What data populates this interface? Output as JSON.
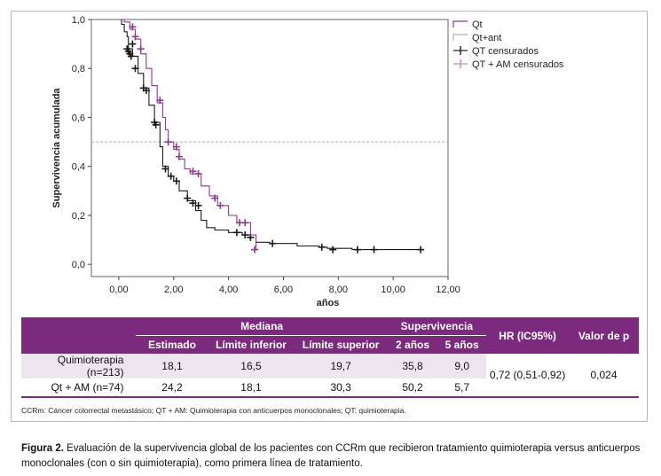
{
  "chart_data": {
    "type": "line",
    "xlabel": "años",
    "ylabel": "Supervivencia acumulada",
    "xlim": [
      -1,
      12
    ],
    "ylim": [
      -0.05,
      1.0
    ],
    "xticks": [
      "0,00",
      "2,00",
      "4,00",
      "6,00",
      "8,00",
      "10,00",
      "12,00"
    ],
    "xtick_values": [
      0,
      2,
      4,
      6,
      8,
      10,
      12
    ],
    "yticks": [
      "0,0",
      "0,2",
      "0,4",
      "0,6",
      "0,8",
      "1,0"
    ],
    "ytick_values": [
      0,
      0.2,
      0.4,
      0.6,
      0.8,
      1.0
    ],
    "reference_line_y": 0.5,
    "legend_position": "top-right",
    "legend": [
      "Qt",
      "Qt+ant",
      "QT censurados",
      "QT + AM censurados"
    ],
    "series": [
      {
        "name": "Qt",
        "color": "#1a1a1a",
        "points": [
          [
            0,
            1.0
          ],
          [
            0.1,
            0.98
          ],
          [
            0.2,
            0.95
          ],
          [
            0.3,
            0.93
          ],
          [
            0.35,
            0.88
          ],
          [
            0.5,
            0.85
          ],
          [
            0.7,
            0.78
          ],
          [
            0.9,
            0.72
          ],
          [
            1.1,
            0.65
          ],
          [
            1.3,
            0.58
          ],
          [
            1.5,
            0.48
          ],
          [
            1.6,
            0.4
          ],
          [
            1.8,
            0.36
          ],
          [
            2.0,
            0.34
          ],
          [
            2.2,
            0.3
          ],
          [
            2.5,
            0.26
          ],
          [
            2.8,
            0.22
          ],
          [
            3.0,
            0.18
          ],
          [
            3.2,
            0.15
          ],
          [
            3.5,
            0.14
          ],
          [
            4.0,
            0.13
          ],
          [
            4.5,
            0.12
          ],
          [
            5.0,
            0.09
          ],
          [
            5.5,
            0.085
          ],
          [
            6.5,
            0.075
          ],
          [
            7.3,
            0.07
          ],
          [
            7.6,
            0.065
          ],
          [
            8.5,
            0.06
          ],
          [
            11.0,
            0.06
          ]
        ],
        "censored": [
          [
            0.3,
            0.88
          ],
          [
            0.35,
            0.87
          ],
          [
            0.4,
            0.86
          ],
          [
            0.45,
            0.85
          ],
          [
            0.5,
            0.9
          ],
          [
            0.6,
            0.8
          ],
          [
            0.9,
            0.72
          ],
          [
            1.0,
            0.71
          ],
          [
            1.3,
            0.58
          ],
          [
            1.35,
            0.57
          ],
          [
            1.7,
            0.39
          ],
          [
            1.9,
            0.36
          ],
          [
            2.1,
            0.34
          ],
          [
            2.5,
            0.27
          ],
          [
            2.7,
            0.25
          ],
          [
            2.9,
            0.24
          ],
          [
            4.3,
            0.13
          ],
          [
            4.6,
            0.12
          ],
          [
            4.8,
            0.11
          ],
          [
            5.6,
            0.085
          ],
          [
            7.4,
            0.07
          ],
          [
            7.8,
            0.06
          ],
          [
            8.7,
            0.06
          ],
          [
            9.3,
            0.06
          ],
          [
            11.0,
            0.06
          ]
        ]
      },
      {
        "name": "Qt+ant",
        "color": "#8b3a8f",
        "points": [
          [
            0,
            1.0
          ],
          [
            0.2,
            0.99
          ],
          [
            0.4,
            0.96
          ],
          [
            0.6,
            0.92
          ],
          [
            0.8,
            0.86
          ],
          [
            1.0,
            0.8
          ],
          [
            1.2,
            0.73
          ],
          [
            1.4,
            0.66
          ],
          [
            1.6,
            0.6
          ],
          [
            1.7,
            0.55
          ],
          [
            1.8,
            0.5
          ],
          [
            2.0,
            0.47
          ],
          [
            2.2,
            0.43
          ],
          [
            2.4,
            0.39
          ],
          [
            2.6,
            0.37
          ],
          [
            3.0,
            0.32
          ],
          [
            3.3,
            0.28
          ],
          [
            3.6,
            0.24
          ],
          [
            4.0,
            0.2
          ],
          [
            4.3,
            0.17
          ],
          [
            4.6,
            0.17
          ],
          [
            4.8,
            0.12
          ],
          [
            5.0,
            0.06
          ]
        ],
        "censored": [
          [
            0.5,
            0.97
          ],
          [
            0.6,
            0.93
          ],
          [
            0.8,
            0.88
          ],
          [
            1.5,
            0.67
          ],
          [
            1.8,
            0.5
          ],
          [
            2.1,
            0.48
          ],
          [
            2.2,
            0.44
          ],
          [
            2.7,
            0.38
          ],
          [
            2.9,
            0.37
          ],
          [
            3.5,
            0.27
          ],
          [
            3.7,
            0.24
          ],
          [
            4.4,
            0.17
          ],
          [
            4.6,
            0.17
          ],
          [
            4.95,
            0.06
          ]
        ]
      }
    ]
  },
  "table": {
    "group_header_median": "Mediana",
    "group_header_survival": "Supervivencia",
    "header_hr": "HR (IC95%)",
    "header_p": "Valor de p",
    "subheaders": [
      "Estimado",
      "Límite inferior",
      "Límite superior",
      "2 años",
      "5 años"
    ],
    "rows": [
      {
        "label": "Quimioterapia (n=213)",
        "values": [
          "18,1",
          "16,5",
          "19,7",
          "35,8",
          "9,0"
        ]
      },
      {
        "label": "Qt + AM (n=74)",
        "values": [
          "24,2",
          "18,1",
          "30,3",
          "50,2",
          "5,7"
        ]
      }
    ],
    "hr_value": "0,72 (0,51-0,92)",
    "p_value": "0,024"
  },
  "footnote": "CCRm: Cáncer colorrectal metastásico; QT + AM: Quimioterapia con anticuerpos monoclonales; QT: quimioterapia.",
  "caption_bold": "Figura 2.",
  "caption_text": " Evaluación de la supervivencia global de los pacientes con CCRm que recibieron tratamiento quimioterapia versus anticuerpos monoclonales (con o sin quimioterapia), como primera línea de tratamiento."
}
